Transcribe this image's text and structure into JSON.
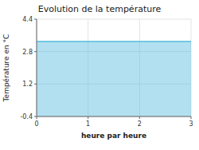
{
  "chart_data": {
    "type": "area",
    "title": "Evolution de la température",
    "x_label": "heure par heure",
    "y_label": "Température en °C",
    "x": [
      0,
      3
    ],
    "values": [
      3.3,
      3.3
    ],
    "color": "#55bbdd",
    "xlim": [
      0,
      3
    ],
    "ylim": [
      -0.4,
      4.4
    ],
    "xticks": [
      0,
      1,
      2,
      3
    ],
    "yticks": [
      -0.4,
      1.2,
      2.8,
      4.4
    ],
    "grid": true
  }
}
